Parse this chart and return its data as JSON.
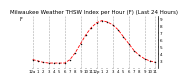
{
  "title": "Milwaukee Weather THSW Index per Hour (F) (Last 24 Hours)",
  "title_fontsize": 4.0,
  "background_color": "#ffffff",
  "line_color": "#ff0000",
  "marker_color": "#000000",
  "grid_color": "#aaaaaa",
  "hours": [
    0,
    1,
    2,
    3,
    4,
    5,
    6,
    7,
    8,
    9,
    10,
    11,
    12,
    13,
    14,
    15,
    16,
    17,
    18,
    19,
    20,
    21,
    22,
    23
  ],
  "values": [
    32,
    30,
    28,
    27,
    27,
    27,
    27,
    32,
    42,
    55,
    68,
    78,
    85,
    88,
    86,
    82,
    75,
    65,
    55,
    45,
    38,
    33,
    30,
    28
  ],
  "ylim": [
    20,
    95
  ],
  "yticks": [
    30,
    40,
    50,
    60,
    70,
    80,
    90
  ],
  "ytick_labels": [
    "3",
    "4",
    "5",
    "6",
    "7",
    "8",
    "9"
  ],
  "tick_labelsize": 3.0,
  "xlabel_fontsize": 2.8,
  "grid_hours": [
    0,
    3,
    6,
    9,
    12,
    15,
    18,
    21,
    23
  ],
  "x_tick_labels": [
    "12a",
    "1",
    "2",
    "3",
    "4",
    "5",
    "6",
    "7",
    "8",
    "9",
    "10",
    "11",
    "12p",
    "1",
    "2",
    "3",
    "4",
    "5",
    "6",
    "7",
    "8",
    "9",
    "10",
    "11"
  ],
  "left_label": "F"
}
